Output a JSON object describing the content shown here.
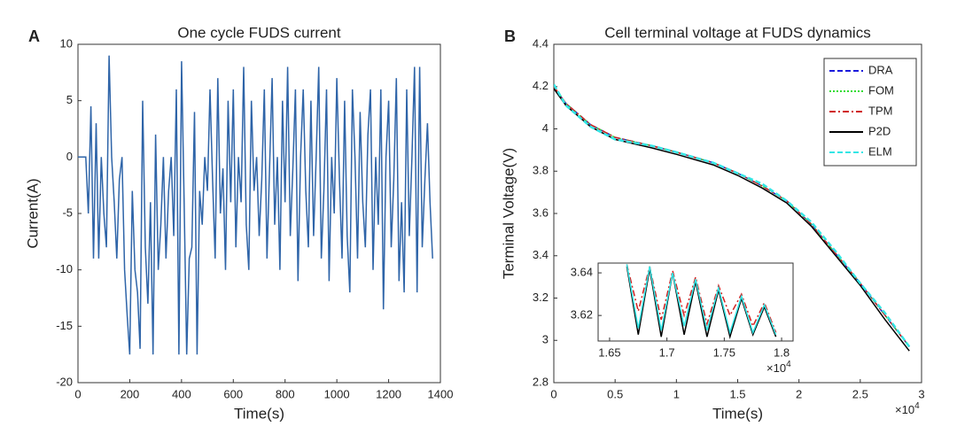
{
  "chart_data": [
    {
      "type": "line",
      "panel_label": "A",
      "title": "One cycle FUDS current",
      "x_label": "Time(s)",
      "y_label": "Current(A)",
      "xlim": [
        0,
        1400
      ],
      "xticks": [
        0,
        200,
        400,
        600,
        800,
        1000,
        1200,
        1400
      ],
      "ylim": [
        -20,
        10
      ],
      "yticks": [
        -20,
        -15,
        -10,
        -5,
        0,
        5,
        10
      ],
      "x": [
        0,
        10,
        20,
        30,
        40,
        50,
        60,
        70,
        80,
        90,
        100,
        110,
        120,
        130,
        140,
        150,
        160,
        170,
        180,
        190,
        200,
        210,
        220,
        230,
        240,
        250,
        260,
        270,
        280,
        290,
        300,
        310,
        320,
        330,
        340,
        350,
        360,
        370,
        380,
        390,
        400,
        410,
        420,
        430,
        440,
        450,
        460,
        470,
        480,
        490,
        500,
        510,
        520,
        530,
        540,
        550,
        560,
        570,
        580,
        590,
        600,
        610,
        620,
        630,
        640,
        650,
        660,
        670,
        680,
        690,
        700,
        710,
        720,
        730,
        740,
        750,
        760,
        770,
        780,
        790,
        800,
        810,
        820,
        830,
        840,
        850,
        860,
        870,
        880,
        890,
        900,
        910,
        920,
        930,
        940,
        950,
        960,
        970,
        980,
        990,
        1000,
        1010,
        1020,
        1030,
        1040,
        1050,
        1060,
        1070,
        1080,
        1090,
        1100,
        1110,
        1120,
        1130,
        1140,
        1150,
        1160,
        1170,
        1180,
        1190,
        1200,
        1210,
        1220,
        1230,
        1240,
        1250,
        1260,
        1270,
        1280,
        1290,
        1300,
        1310,
        1320,
        1330,
        1340,
        1350,
        1360,
        1370
      ],
      "series": [
        {
          "color": "#2e64a8",
          "values": [
            0,
            0,
            0,
            0,
            -5,
            4.5,
            -9,
            3,
            -9,
            0,
            -5,
            -8,
            9,
            0,
            -4,
            -9,
            -2,
            0,
            -10,
            -14,
            -17.5,
            -3,
            -10,
            -12,
            -17,
            5,
            -8,
            -13,
            -4,
            -17.5,
            2,
            -10,
            -6,
            0,
            -9,
            -3,
            0,
            -7,
            6,
            -17.5,
            8.5,
            -4,
            -17.5,
            -9,
            -8,
            4,
            -17.5,
            -3,
            -6,
            0,
            -3,
            6,
            -2,
            -9,
            7,
            -5,
            -1,
            -10,
            5,
            -4,
            6,
            -8,
            0,
            -4,
            8,
            -6,
            -10,
            5,
            -3,
            0,
            -7,
            -2,
            6,
            -9,
            -1,
            7,
            -6,
            0,
            -10,
            5,
            -4,
            8,
            -7,
            -1,
            6,
            -11,
            0,
            6,
            -3,
            -8,
            5,
            -7,
            0,
            8,
            -9,
            -3,
            6,
            -11,
            0,
            -5,
            7,
            -2,
            -9,
            5,
            -7,
            -12,
            6,
            0,
            -9,
            4,
            -4,
            -8,
            2,
            6,
            -10,
            0,
            -6,
            6,
            -13.5,
            0,
            5,
            -8,
            -2,
            7,
            -11,
            -4,
            -12,
            6,
            -7,
            0,
            8,
            -12,
            8,
            -8,
            -2,
            3,
            -4,
            -9
          ]
        }
      ]
    },
    {
      "type": "line",
      "panel_label": "B",
      "title": "Cell terminal voltage at FUDS dynamics",
      "x_label": "Time(s)",
      "y_label": "Terminal Voltage(V)",
      "x_multiplier": "×10",
      "x_multiplier_exponent": "4",
      "xlim": [
        0,
        3
      ],
      "xticks": [
        0,
        0.5,
        1,
        1.5,
        2,
        2.5,
        3
      ],
      "ylim": [
        2.8,
        4.4
      ],
      "yticks": [
        2.8,
        3,
        3.2,
        3.4,
        3.6,
        3.8,
        4,
        4.2,
        4.4
      ],
      "legend": "upper right",
      "x": [
        0,
        0.1,
        0.3,
        0.5,
        0.8,
        1.0,
        1.3,
        1.5,
        1.7,
        1.9,
        2.1,
        2.3,
        2.5,
        2.7,
        2.9
      ],
      "series": [
        {
          "name": "DRA",
          "color": "#1a1adc",
          "dash": "dashed",
          "values": [
            4.2,
            4.12,
            4.02,
            3.96,
            3.92,
            3.89,
            3.84,
            3.79,
            3.73,
            3.66,
            3.55,
            3.41,
            3.27,
            3.12,
            2.97
          ]
        },
        {
          "name": "FOM",
          "color": "#33dd33",
          "dash": "dotted",
          "values": [
            4.2,
            4.12,
            4.02,
            3.96,
            3.92,
            3.89,
            3.84,
            3.79,
            3.73,
            3.66,
            3.55,
            3.41,
            3.27,
            3.12,
            2.97
          ]
        },
        {
          "name": "TPM",
          "color": "#d02020",
          "dash": "dashdot",
          "values": [
            4.2,
            4.12,
            4.02,
            3.96,
            3.92,
            3.89,
            3.84,
            3.79,
            3.73,
            3.66,
            3.55,
            3.41,
            3.27,
            3.12,
            2.97
          ]
        },
        {
          "name": "P2D",
          "color": "#000000",
          "dash": "solid",
          "values": [
            4.19,
            4.11,
            4.01,
            3.95,
            3.91,
            3.88,
            3.83,
            3.78,
            3.72,
            3.65,
            3.54,
            3.4,
            3.26,
            3.1,
            2.95
          ]
        },
        {
          "name": "ELM",
          "color": "#33e6e6",
          "dash": "dashed",
          "values": [
            4.21,
            4.11,
            4.01,
            3.95,
            3.92,
            3.89,
            3.84,
            3.79,
            3.74,
            3.66,
            3.56,
            3.42,
            3.27,
            3.13,
            2.97
          ]
        }
      ],
      "inset": {
        "xlim": [
          1.64,
          1.81
        ],
        "xticks": [
          1.65,
          1.7,
          1.75,
          1.8
        ],
        "ylim": [
          3.608,
          3.6446
        ],
        "yticks": [
          3.62,
          3.64
        ],
        "x_multiplier": "×10",
        "x_multiplier_exponent": "4",
        "x": [
          1.665,
          1.675,
          1.685,
          1.695,
          1.705,
          1.715,
          1.725,
          1.735,
          1.745,
          1.755,
          1.765,
          1.775,
          1.785,
          1.795
        ],
        "series": [
          {
            "color": "#d02020",
            "dash": "dashdot",
            "values": [
              3.644,
              3.622,
              3.643,
              3.618,
              3.641,
              3.62,
              3.638,
              3.616,
              3.634,
              3.62,
              3.63,
              3.615,
              3.626,
              3.612
            ]
          },
          {
            "color": "#000000",
            "dash": "solid",
            "values": [
              3.643,
              3.611,
              3.642,
              3.61,
              3.64,
              3.611,
              3.636,
              3.61,
              3.632,
              3.61,
              3.628,
              3.611,
              3.624,
              3.61
            ]
          },
          {
            "color": "#33e6e6",
            "dash": "solid",
            "values": [
              3.644,
              3.614,
              3.643,
              3.613,
              3.64,
              3.615,
              3.637,
              3.613,
              3.633,
              3.612,
              3.629,
              3.612,
              3.625,
              3.611
            ]
          }
        ]
      }
    }
  ]
}
